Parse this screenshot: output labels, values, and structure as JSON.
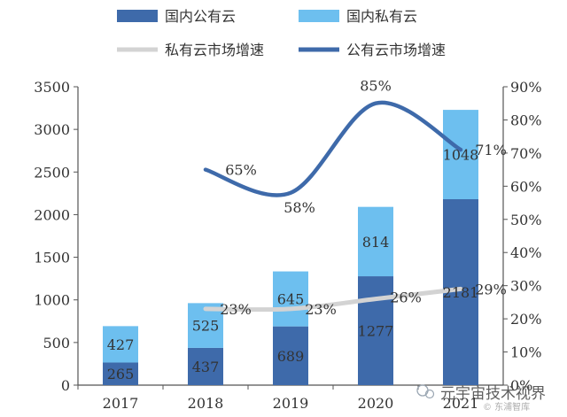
{
  "chart_data": {
    "type": "bar",
    "categories": [
      "2017",
      "2018",
      "2019",
      "2020",
      "2021"
    ],
    "series": [
      {
        "name": "国内公有云",
        "type": "stacked-bar",
        "axis": "left",
        "color": "#3E6AAA",
        "values": [
          265,
          437,
          689,
          1277,
          2181
        ],
        "labels": [
          "265",
          "437",
          "689",
          "1277",
          "2181"
        ]
      },
      {
        "name": "国内私有云",
        "type": "stacked-bar",
        "axis": "left",
        "color": "#6DBFEF",
        "values": [
          427,
          525,
          645,
          814,
          1048
        ],
        "labels": [
          "427",
          "525",
          "645",
          "814",
          "1048"
        ]
      },
      {
        "name": "私有云市场增速",
        "type": "smooth-line",
        "axis": "right",
        "color": "#D3D3D3",
        "values": [
          null,
          0.23,
          0.23,
          0.26,
          0.29
        ],
        "labels": [
          "",
          "23%",
          "23%",
          "26%",
          "29%"
        ]
      },
      {
        "name": "公有云市场增速",
        "type": "smooth-line",
        "axis": "right",
        "color": "#3E6AAA",
        "values": [
          null,
          0.65,
          0.58,
          0.85,
          0.71
        ],
        "labels": [
          "",
          "65%",
          "58%",
          "85%",
          "71%"
        ]
      }
    ],
    "y_left": {
      "min": 0,
      "max": 3500,
      "ticks": [
        "0",
        "500",
        "1000",
        "1500",
        "2000",
        "2500",
        "3000",
        "3500"
      ]
    },
    "y_right": {
      "min": 0,
      "max": 0.9,
      "ticks": [
        "0%",
        "10%",
        "20%",
        "30%",
        "40%",
        "50%",
        "60%",
        "70%",
        "80%",
        "90%"
      ]
    },
    "grid": false,
    "legend_position": "top"
  },
  "watermark": {
    "text": "元宇宙技术视界",
    "subtext": "© 东浦智库"
  }
}
